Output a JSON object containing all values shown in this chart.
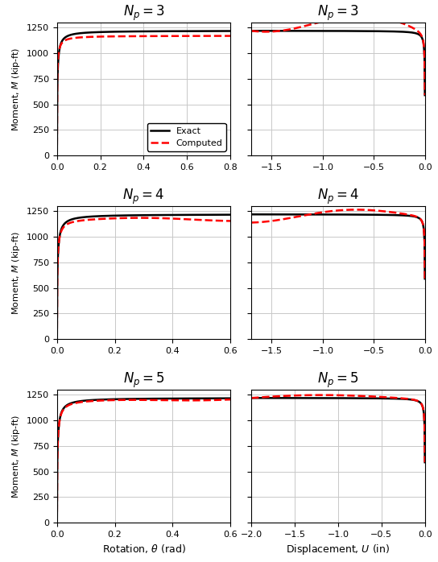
{
  "titles": [
    "$N_p = 3$",
    "$N_p = 4$",
    "$N_p = 5$"
  ],
  "ylabel": "Moment, $M$ (kip-ft)",
  "xlabel_left": "Rotation, $\\theta$ (rad)",
  "xlabel_right": "Displacement, $U$ (in)",
  "ylim": [
    0,
    1300
  ],
  "yticks": [
    0,
    250,
    500,
    750,
    1000,
    1250
  ],
  "xticks_left_3": [
    0.0,
    0.2,
    0.4,
    0.6,
    0.8
  ],
  "xticks_left_45": [
    0.0,
    0.2,
    0.4,
    0.6
  ],
  "xticks_right_3": [
    -1.5,
    -1.0,
    -0.5,
    0.0
  ],
  "xticks_right_5": [
    -2.0,
    -1.5,
    -1.0,
    -0.5,
    0.0
  ],
  "theta_maxes": [
    0.8,
    0.6,
    0.6
  ],
  "U_mins": [
    -1.7,
    -1.7,
    -2.0
  ],
  "My": 590,
  "Mu": 1220,
  "exact_color": "#000000",
  "computed_color": "#ff0000",
  "lw": 1.8,
  "figsize": [
    5.44,
    6.98
  ],
  "dpi": 100
}
